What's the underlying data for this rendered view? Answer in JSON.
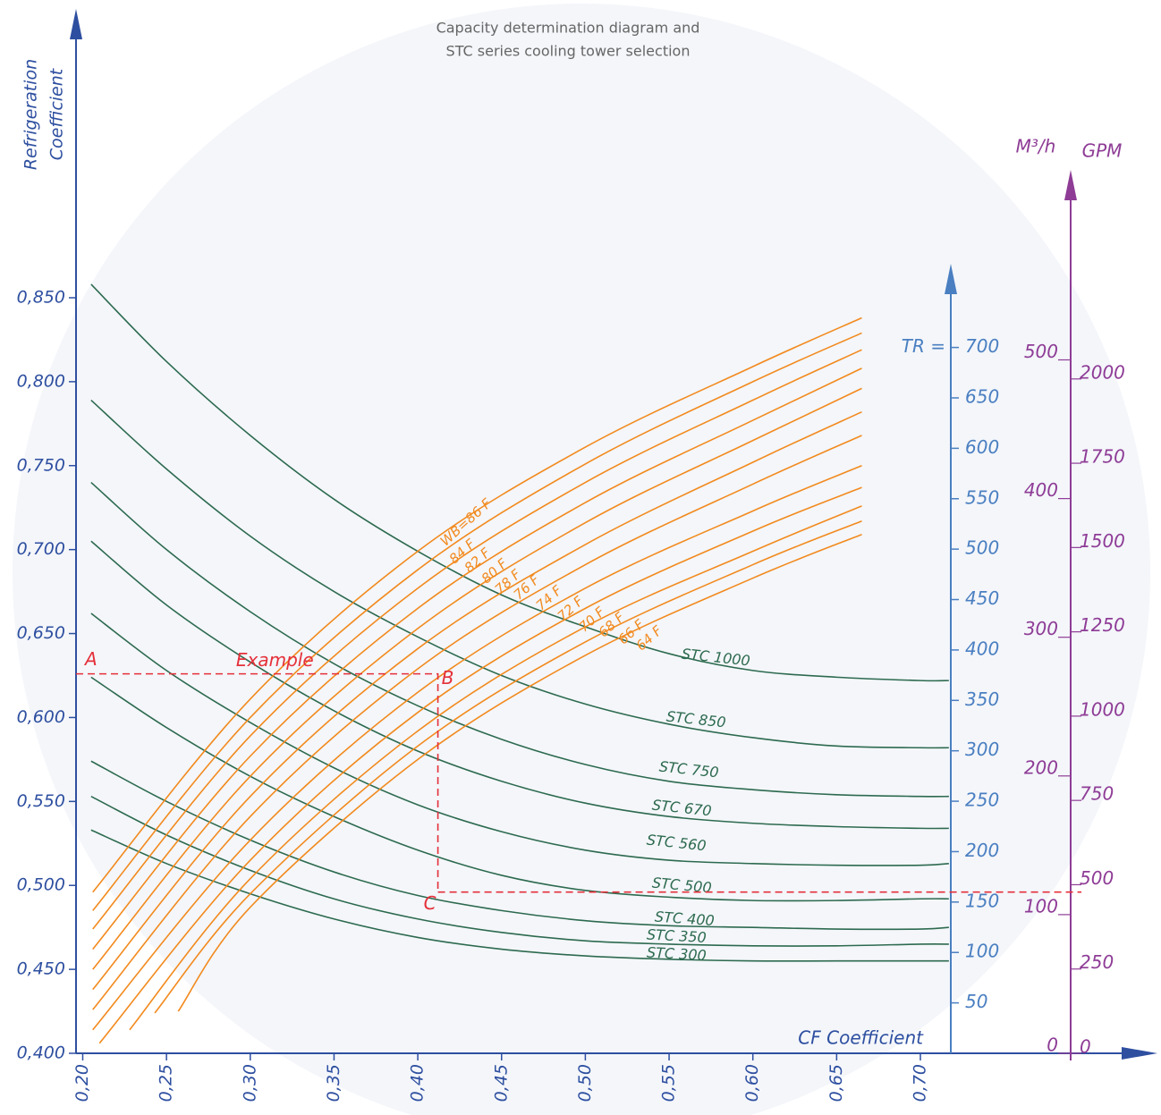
{
  "chart_data": {
    "type": "nomogram",
    "title_lines": [
      "Capacity determination diagram and",
      "STC series cooling tower selection"
    ],
    "y_label_lines": [
      "Refrigeration",
      "Coefficient"
    ],
    "x_label": "CF Coefficient",
    "xlim": [
      0.196,
      0.834
    ],
    "xticks": [
      {
        "value": 0.2,
        "label": "0,20"
      },
      {
        "value": 0.25,
        "label": "0,25"
      },
      {
        "value": 0.3,
        "label": "0,30"
      },
      {
        "value": 0.35,
        "label": "0,35"
      },
      {
        "value": 0.4,
        "label": "0,40"
      },
      {
        "value": 0.45,
        "label": "0,45"
      },
      {
        "value": 0.5,
        "label": "0,50"
      },
      {
        "value": 0.55,
        "label": "0,55"
      },
      {
        "value": 0.6,
        "label": "0,60"
      },
      {
        "value": 0.65,
        "label": "0,65"
      },
      {
        "value": 0.7,
        "label": "0,70"
      }
    ],
    "ylim": [
      0.4,
      1.022
    ],
    "yticks": [
      {
        "value": 0.4,
        "label": "0,400"
      },
      {
        "value": 0.45,
        "label": "0,450"
      },
      {
        "value": 0.5,
        "label": "0,500"
      },
      {
        "value": 0.55,
        "label": "0,550"
      },
      {
        "value": 0.6,
        "label": "0,600"
      },
      {
        "value": 0.65,
        "label": "0,650"
      },
      {
        "value": 0.7,
        "label": "0,700"
      },
      {
        "value": 0.75,
        "label": "0,750"
      },
      {
        "value": 0.8,
        "label": "0,800"
      },
      {
        "value": 0.85,
        "label": "0,850"
      }
    ],
    "tr_axis": {
      "label": "TR =",
      "lim": [
        0,
        783
      ],
      "ticks": [
        50,
        100,
        150,
        200,
        250,
        300,
        350,
        400,
        450,
        500,
        550,
        600,
        650,
        700
      ],
      "color": "#4a7fc1"
    },
    "flow_axes": {
      "m3h_label": "M³/h",
      "m3h_lim": [
        0,
        637
      ],
      "m3h_ticks": [
        0,
        100,
        200,
        300,
        400,
        500
      ],
      "gpm_label": "GPM",
      "gpm_lim": [
        0,
        2620
      ],
      "gpm_ticks": [
        0,
        250,
        500,
        750,
        1000,
        1250,
        1500,
        1750,
        2000
      ],
      "color": "#8e3c96"
    },
    "series": [
      {
        "name": "STC 1000",
        "color": "#2d6a4f",
        "x": [
          0.205,
          0.25,
          0.3,
          0.35,
          0.4,
          0.45,
          0.5,
          0.55,
          0.6,
          0.65,
          0.7,
          0.717
        ],
        "values": [
          0.858,
          0.812,
          0.768,
          0.73,
          0.699,
          0.673,
          0.654,
          0.638,
          0.628,
          0.624,
          0.622,
          0.622
        ]
      },
      {
        "name": "STC 850",
        "color": "#2d6a4f",
        "x": [
          0.205,
          0.25,
          0.3,
          0.35,
          0.4,
          0.45,
          0.5,
          0.55,
          0.6,
          0.65,
          0.7,
          0.717
        ],
        "values": [
          0.789,
          0.748,
          0.708,
          0.675,
          0.648,
          0.625,
          0.608,
          0.596,
          0.588,
          0.583,
          0.582,
          0.582
        ]
      },
      {
        "name": "STC 750",
        "color": "#2d6a4f",
        "x": [
          0.205,
          0.25,
          0.3,
          0.35,
          0.4,
          0.45,
          0.5,
          0.55,
          0.6,
          0.65,
          0.7,
          0.717
        ],
        "values": [
          0.74,
          0.7,
          0.663,
          0.632,
          0.607,
          0.587,
          0.572,
          0.562,
          0.557,
          0.554,
          0.553,
          0.553
        ]
      },
      {
        "name": "STC 670",
        "color": "#2d6a4f",
        "x": [
          0.205,
          0.25,
          0.3,
          0.35,
          0.4,
          0.45,
          0.5,
          0.55,
          0.6,
          0.65,
          0.7,
          0.717
        ],
        "values": [
          0.705,
          0.667,
          0.633,
          0.604,
          0.58,
          0.562,
          0.549,
          0.541,
          0.537,
          0.535,
          0.534,
          0.534
        ]
      },
      {
        "name": "STC 560",
        "color": "#2d6a4f",
        "x": [
          0.205,
          0.25,
          0.3,
          0.35,
          0.4,
          0.45,
          0.5,
          0.55,
          0.6,
          0.65,
          0.7,
          0.717
        ],
        "values": [
          0.662,
          0.628,
          0.597,
          0.57,
          0.548,
          0.532,
          0.521,
          0.515,
          0.513,
          0.512,
          0.512,
          0.513
        ]
      },
      {
        "name": "STC 500",
        "color": "#2d6a4f",
        "x": [
          0.205,
          0.25,
          0.3,
          0.35,
          0.4,
          0.45,
          0.5,
          0.55,
          0.6,
          0.65,
          0.7,
          0.717
        ],
        "values": [
          0.624,
          0.594,
          0.565,
          0.541,
          0.521,
          0.506,
          0.497,
          0.493,
          0.491,
          0.491,
          0.492,
          0.492
        ]
      },
      {
        "name": "STC 400",
        "color": "#2d6a4f",
        "x": [
          0.205,
          0.25,
          0.3,
          0.35,
          0.4,
          0.45,
          0.5,
          0.55,
          0.6,
          0.65,
          0.7,
          0.717
        ],
        "values": [
          0.574,
          0.55,
          0.527,
          0.508,
          0.494,
          0.485,
          0.479,
          0.476,
          0.475,
          0.474,
          0.474,
          0.475
        ]
      },
      {
        "name": "STC 350",
        "color": "#2d6a4f",
        "x": [
          0.205,
          0.25,
          0.3,
          0.35,
          0.4,
          0.45,
          0.5,
          0.55,
          0.6,
          0.65,
          0.7,
          0.717
        ],
        "values": [
          0.553,
          0.53,
          0.509,
          0.492,
          0.48,
          0.472,
          0.467,
          0.465,
          0.464,
          0.464,
          0.465,
          0.465
        ]
      },
      {
        "name": "STC 300",
        "color": "#2d6a4f",
        "x": [
          0.205,
          0.25,
          0.3,
          0.35,
          0.4,
          0.45,
          0.5,
          0.55,
          0.6,
          0.65,
          0.7,
          0.717
        ],
        "values": [
          0.533,
          0.513,
          0.495,
          0.48,
          0.469,
          0.462,
          0.458,
          0.456,
          0.455,
          0.455,
          0.455,
          0.455
        ]
      }
    ],
    "wb_series": [
      {
        "name": "WB=86 F",
        "color": "#f28a1e",
        "x": [
          0.206,
          0.3,
          0.4,
          0.5,
          0.6,
          0.665
        ],
        "values": [
          0.496,
          0.611,
          0.699,
          0.761,
          0.809,
          0.838
        ]
      },
      {
        "name": "84 F",
        "color": "#f28a1e",
        "x": [
          0.206,
          0.3,
          0.4,
          0.5,
          0.6,
          0.665
        ],
        "values": [
          0.485,
          0.6,
          0.688,
          0.751,
          0.8,
          0.829
        ]
      },
      {
        "name": "82 F",
        "color": "#f28a1e",
        "x": [
          0.206,
          0.3,
          0.4,
          0.5,
          0.6,
          0.665
        ],
        "values": [
          0.474,
          0.589,
          0.677,
          0.74,
          0.789,
          0.819
        ]
      },
      {
        "name": "80 F",
        "color": "#f28a1e",
        "x": [
          0.206,
          0.3,
          0.4,
          0.5,
          0.6,
          0.665
        ],
        "values": [
          0.462,
          0.577,
          0.665,
          0.728,
          0.777,
          0.808
        ]
      },
      {
        "name": "78 F",
        "color": "#f28a1e",
        "x": [
          0.206,
          0.3,
          0.4,
          0.5,
          0.6,
          0.665
        ],
        "values": [
          0.45,
          0.565,
          0.653,
          0.716,
          0.765,
          0.796
        ]
      },
      {
        "name": "76 F",
        "color": "#f28a1e",
        "x": [
          0.206,
          0.3,
          0.4,
          0.5,
          0.6,
          0.665
        ],
        "values": [
          0.438,
          0.553,
          0.641,
          0.703,
          0.752,
          0.782
        ]
      },
      {
        "name": "74 F",
        "color": "#f28a1e",
        "x": [
          0.206,
          0.3,
          0.4,
          0.5,
          0.6,
          0.665
        ],
        "values": [
          0.426,
          0.541,
          0.629,
          0.691,
          0.739,
          0.768
        ]
      },
      {
        "name": "72 F",
        "color": "#f28a1e",
        "x": [
          0.206,
          0.3,
          0.4,
          0.5,
          0.6,
          0.665
        ],
        "values": [
          0.414,
          0.527,
          0.615,
          0.677,
          0.723,
          0.75
        ]
      },
      {
        "name": "70 F",
        "color": "#f28a1e",
        "x": [
          0.21,
          0.3,
          0.4,
          0.5,
          0.6,
          0.665
        ],
        "values": [
          0.406,
          0.515,
          0.603,
          0.665,
          0.711,
          0.737
        ]
      },
      {
        "name": "68 F",
        "color": "#f28a1e",
        "x": [
          0.228,
          0.3,
          0.4,
          0.5,
          0.6,
          0.665
        ],
        "values": [
          0.414,
          0.504,
          0.592,
          0.654,
          0.699,
          0.726
        ]
      },
      {
        "name": "66 F",
        "color": "#f28a1e",
        "x": [
          0.243,
          0.3,
          0.4,
          0.5,
          0.6,
          0.665
        ],
        "values": [
          0.424,
          0.495,
          0.583,
          0.645,
          0.691,
          0.717
        ]
      },
      {
        "name": "64 F",
        "color": "#f28a1e",
        "x": [
          0.257,
          0.3,
          0.4,
          0.5,
          0.6,
          0.665
        ],
        "values": [
          0.425,
          0.487,
          0.575,
          0.637,
          0.683,
          0.709
        ]
      }
    ],
    "example": {
      "label": "Example",
      "color": "#e5303a",
      "points": [
        {
          "label": "A",
          "x": 0.196,
          "y": 0.626
        },
        {
          "label": "B",
          "x": 0.412,
          "y": 0.626
        },
        {
          "label": "C",
          "x": 0.412,
          "y": 0.496
        }
      ]
    }
  }
}
